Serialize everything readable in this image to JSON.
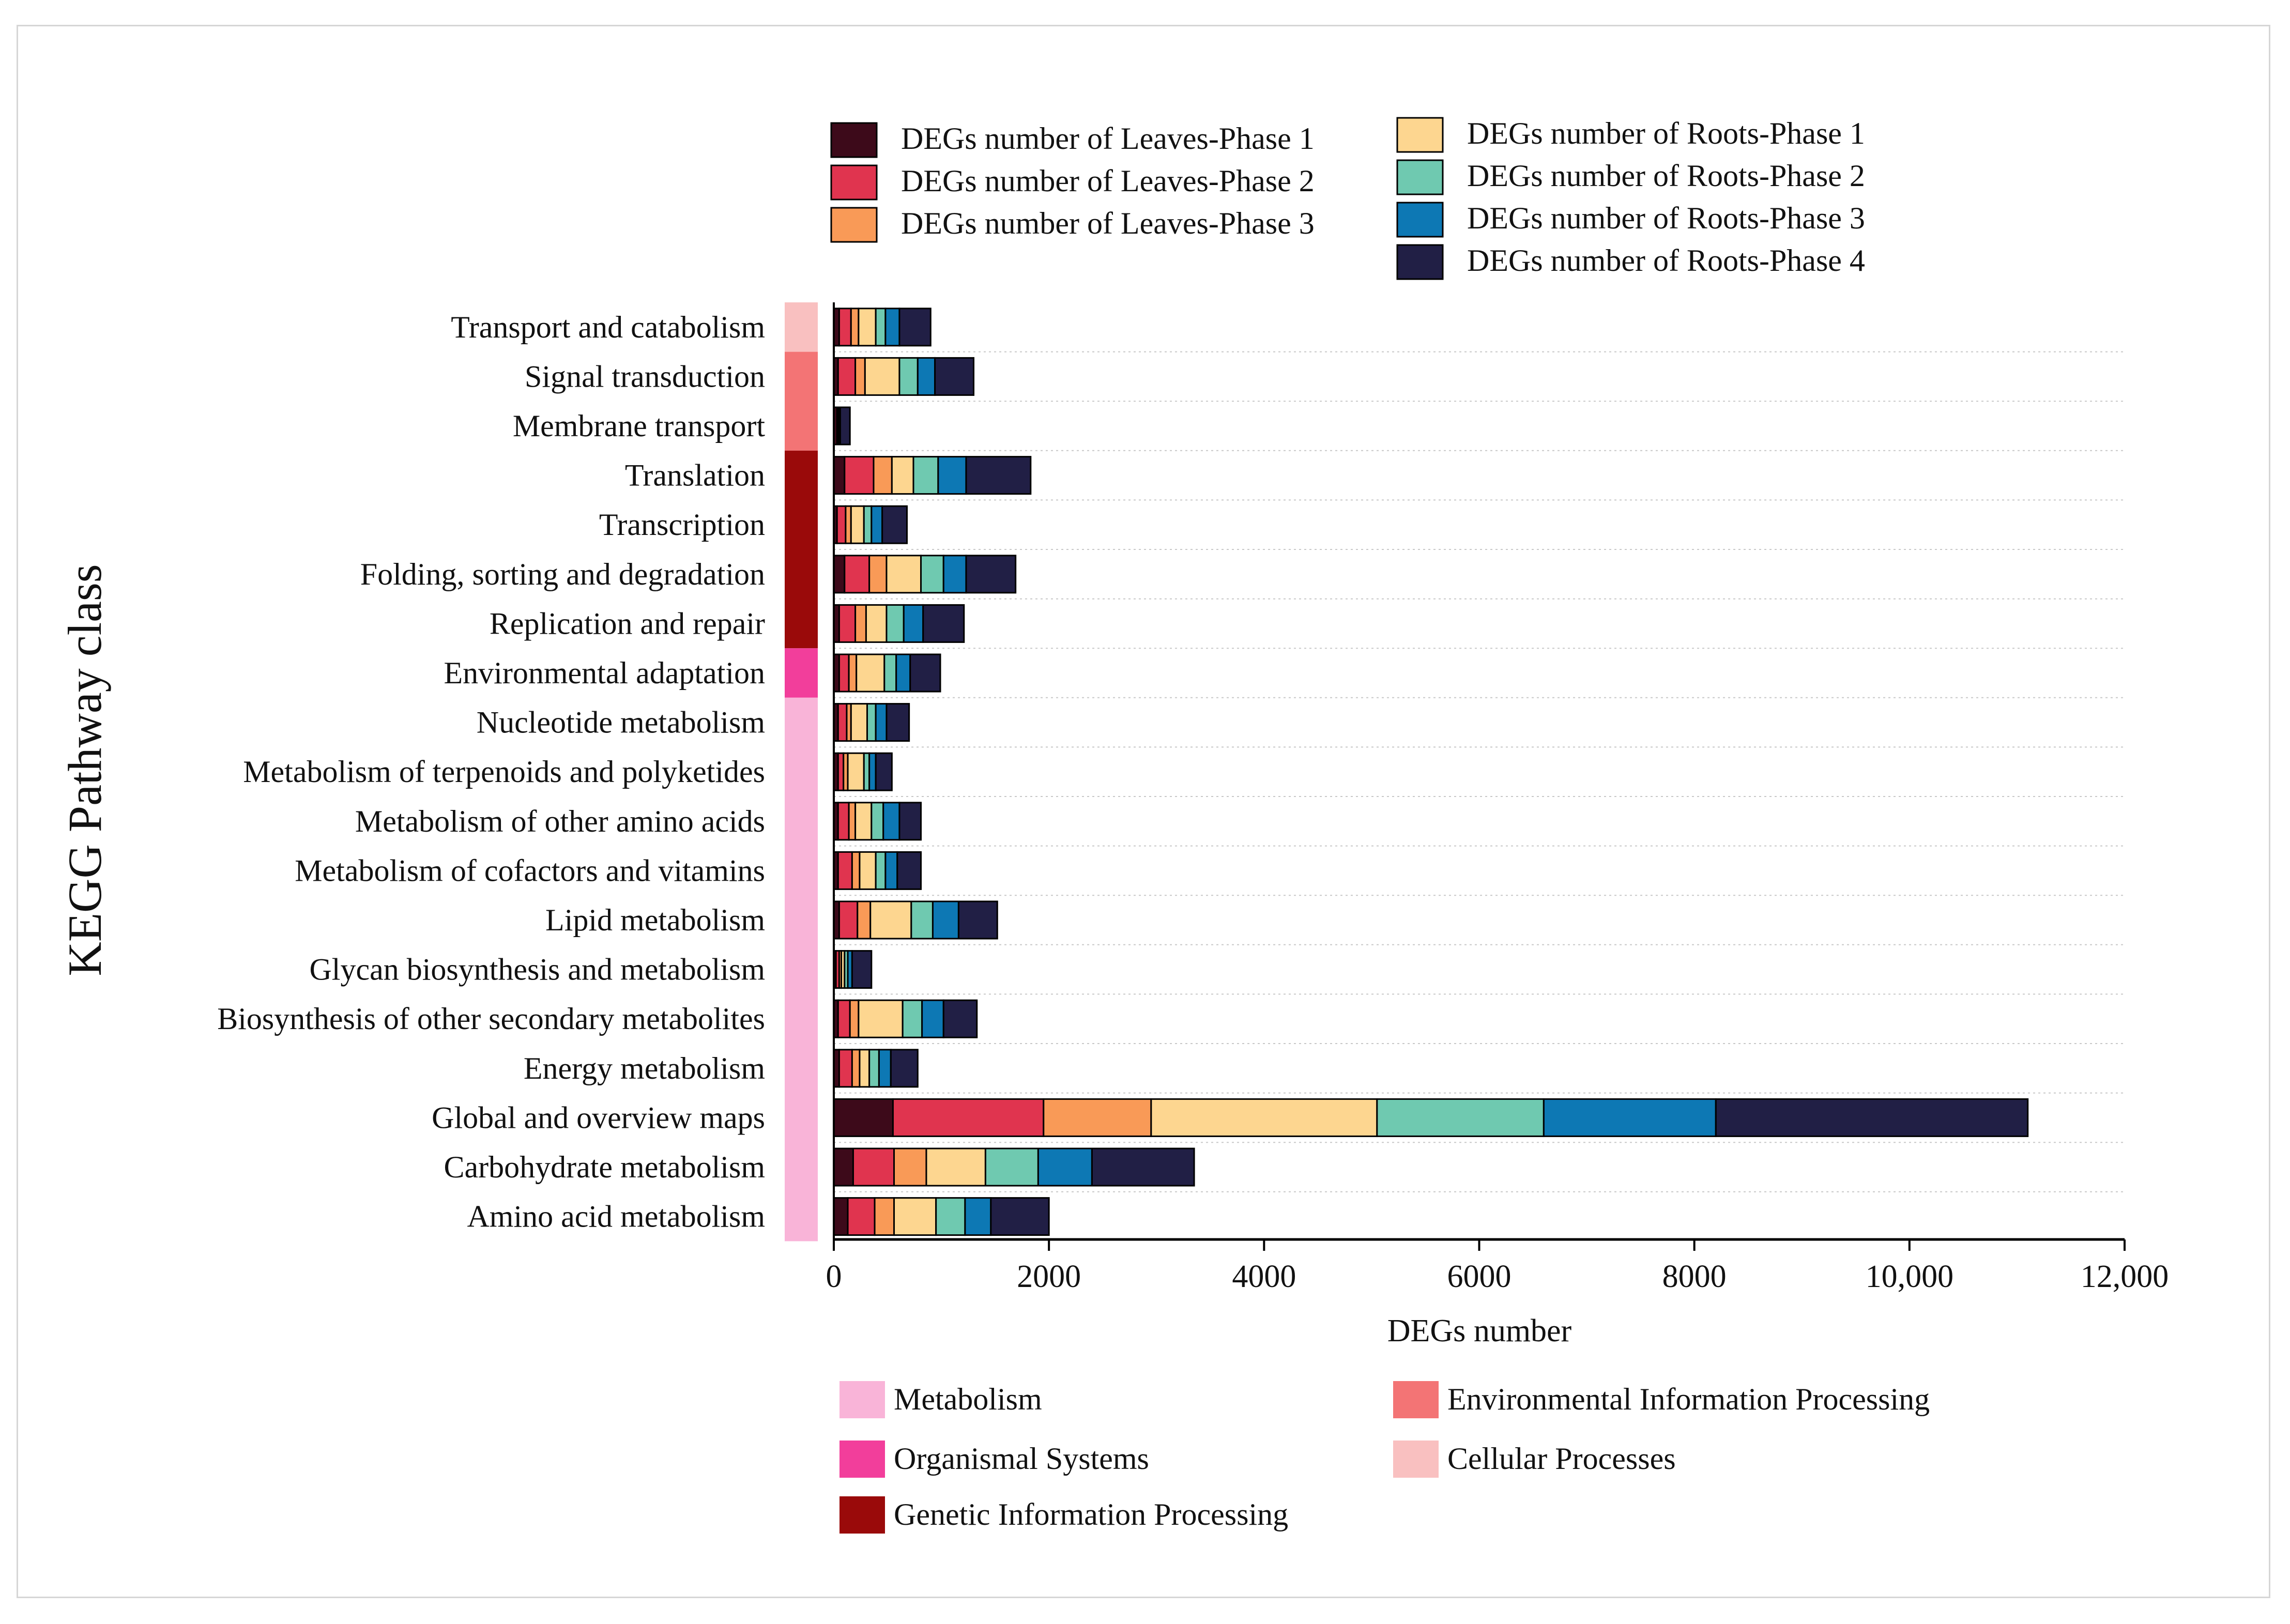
{
  "chart_data": {
    "type": "bar",
    "orientation": "horizontal",
    "stacked": true,
    "title": "",
    "xlabel": "DEGs number",
    "ylabel": "KEGG Pathway class",
    "xlim": [
      0,
      12000
    ],
    "xticks": [
      0,
      2000,
      4000,
      6000,
      8000,
      10000,
      12000
    ],
    "xtick_labels": [
      "0",
      "2000",
      "4000",
      "6000",
      "8000",
      "10,000",
      "12,000"
    ],
    "legend_position": "top",
    "categories": [
      "Transport and catabolism",
      "Signal transduction",
      "Membrane transport",
      "Translation",
      "Transcription",
      "Folding, sorting and degradation",
      "Replication and repair",
      "Environmental adaptation",
      "Nucleotide metabolism",
      "Metabolism of terpenoids and polyketides",
      "Metabolism of other amino acids",
      "Metabolism of cofactors and vitamins",
      "Lipid metabolism",
      "Glycan biosynthesis and metabolism",
      "Biosynthesis of other secondary metabolites",
      "Energy metabolism",
      "Global and overview maps",
      "Carbohydrate metabolism",
      "Amino acid metabolism"
    ],
    "series": [
      {
        "name": "DEGs number of Leaves-Phase 1",
        "color": "#3d0a1a",
        "values": [
          50,
          40,
          30,
          100,
          30,
          100,
          50,
          50,
          40,
          40,
          40,
          40,
          50,
          20,
          40,
          50,
          550,
          180,
          130
        ]
      },
      {
        "name": "DEGs number of Leaves-Phase 2",
        "color": "#e0344f",
        "values": [
          110,
          160,
          10,
          270,
          80,
          230,
          150,
          90,
          80,
          50,
          100,
          130,
          170,
          30,
          110,
          120,
          1400,
          380,
          250
        ]
      },
      {
        "name": "DEGs number of Leaves-Phase 3",
        "color": "#f99a57",
        "values": [
          70,
          90,
          5,
          170,
          50,
          160,
          100,
          70,
          40,
          40,
          60,
          70,
          120,
          20,
          80,
          70,
          1000,
          300,
          180
        ]
      },
      {
        "name": "DEGs number of Roots-Phase 1",
        "color": "#fdd690",
        "values": [
          160,
          320,
          5,
          200,
          120,
          320,
          190,
          260,
          150,
          150,
          150,
          150,
          380,
          30,
          410,
          90,
          2100,
          550,
          390
        ]
      },
      {
        "name": "DEGs number of Roots-Phase 2",
        "color": "#6fc9b0",
        "values": [
          90,
          170,
          5,
          230,
          70,
          210,
          160,
          110,
          80,
          50,
          110,
          90,
          200,
          30,
          180,
          90,
          1550,
          490,
          270
        ]
      },
      {
        "name": "DEGs number of Roots-Phase 3",
        "color": "#0d78b4",
        "values": [
          130,
          160,
          5,
          260,
          100,
          210,
          180,
          130,
          100,
          60,
          150,
          110,
          240,
          40,
          200,
          110,
          1600,
          500,
          240
        ]
      },
      {
        "name": "DEGs number of Roots-Phase 4",
        "color": "#211f45",
        "values": [
          290,
          360,
          90,
          600,
          230,
          460,
          380,
          280,
          210,
          150,
          200,
          220,
          360,
          180,
          310,
          250,
          2900,
          950,
          540
        ]
      }
    ],
    "group_legend": [
      {
        "name": "Metabolism",
        "color": "#f9b4d8"
      },
      {
        "name": "Environmental Information Processing",
        "color": "#f37475"
      },
      {
        "name": "Organismal Systems",
        "color": "#f23e9b"
      },
      {
        "name": "Cellular Processes",
        "color": "#f9c0c0"
      },
      {
        "name": "Genetic Information Processing",
        "color": "#9a0a0a"
      }
    ],
    "category_groups": [
      "Cellular Processes",
      "Environmental Information Processing",
      "Environmental Information Processing",
      "Genetic Information Processing",
      "Genetic Information Processing",
      "Genetic Information Processing",
      "Genetic Information Processing",
      "Organismal Systems",
      "Metabolism",
      "Metabolism",
      "Metabolism",
      "Metabolism",
      "Metabolism",
      "Metabolism",
      "Metabolism",
      "Metabolism",
      "Metabolism",
      "Metabolism",
      "Metabolism"
    ]
  }
}
